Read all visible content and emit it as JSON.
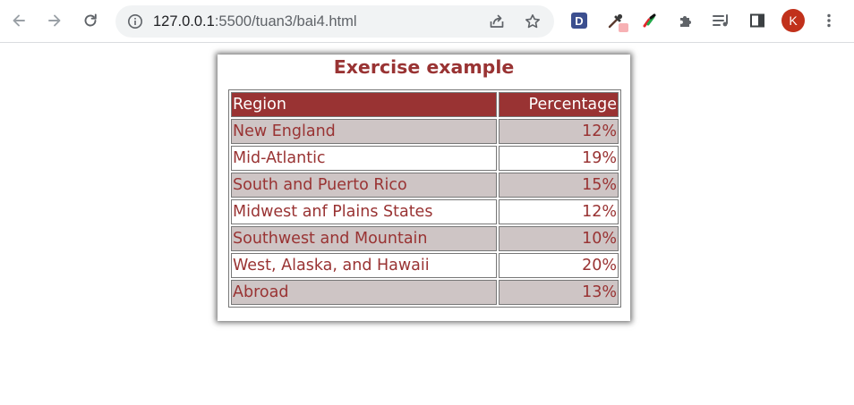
{
  "browser": {
    "url_host": "127.0.0.1",
    "url_path": ":5500/tuan3/bai4.html",
    "extension_d_label": "D",
    "profile_initial": "K"
  },
  "page": {
    "title": "Exercise example",
    "table": {
      "headers": [
        "Region",
        "Percentage"
      ],
      "rows": [
        {
          "region": "New England",
          "percentage": "12%"
        },
        {
          "region": "Mid-Atlantic",
          "percentage": "19%"
        },
        {
          "region": "South and Puerto Rico",
          "percentage": "15%"
        },
        {
          "region": "Midwest anf Plains States",
          "percentage": "12%"
        },
        {
          "region": "Southwest and Mountain",
          "percentage": "10%"
        },
        {
          "region": "West, Alaska, and Hawaii",
          "percentage": "20%"
        },
        {
          "region": "Abroad",
          "percentage": "13%"
        }
      ]
    }
  },
  "colors": {
    "accent": "#993333",
    "row_shade": "#cec5c5",
    "avatar": "#c1311b"
  },
  "icons": [
    "back-arrow-icon",
    "forward-arrow-icon",
    "reload-icon",
    "info-icon",
    "share-icon",
    "bookmark-star-icon",
    "extension-d-icon",
    "eyedropper-icon",
    "color-pen-icon",
    "puzzle-icon",
    "reading-list-icon",
    "side-panel-icon",
    "kebab-menu-icon"
  ]
}
